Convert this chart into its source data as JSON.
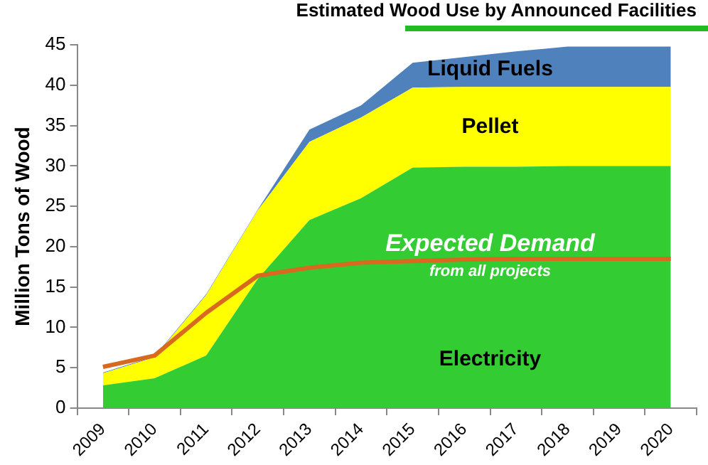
{
  "chart_data": {
    "type": "area",
    "title": "Estimated Wood Use by Announced Facilities",
    "ylabel": "Million Tons of Wood",
    "stacked": true,
    "categories": [
      "2009",
      "2010",
      "2011",
      "2012",
      "2013",
      "2014",
      "2015",
      "2016",
      "2017",
      "2018",
      "2019",
      "2020"
    ],
    "series": [
      {
        "name": "Electricity",
        "color": "#33cc33",
        "values": [
          2.8,
          3.7,
          6.5,
          16,
          23.3,
          26,
          29.8,
          29.9,
          29.9,
          30,
          30,
          30
        ]
      },
      {
        "name": "Pellet",
        "color": "#ffff00",
        "values": [
          1.5,
          2.6,
          7.5,
          8.5,
          9.7,
          10,
          9.9,
          9.9,
          9.9,
          9.8,
          9.8,
          9.8
        ]
      },
      {
        "name": "Liquid Fuels",
        "color": "#4f81bd",
        "values": [
          0.1,
          0.1,
          0.1,
          0.1,
          1.5,
          1.5,
          3.1,
          3.7,
          4.4,
          5,
          5,
          5
        ]
      },
      {
        "name": "Expected Demand",
        "type": "line",
        "color": "#d9691e",
        "values": [
          5.1,
          6.5,
          11.8,
          16.4,
          17.4,
          18,
          18.2,
          18.4,
          18.5,
          18.5,
          18.5,
          18.5
        ]
      }
    ],
    "annotations": [
      "from all projects"
    ],
    "ylim": [
      0,
      45
    ],
    "yticks": [
      0,
      5,
      10,
      15,
      20,
      25,
      30,
      35,
      40,
      45
    ],
    "grid": false,
    "legend": false
  }
}
